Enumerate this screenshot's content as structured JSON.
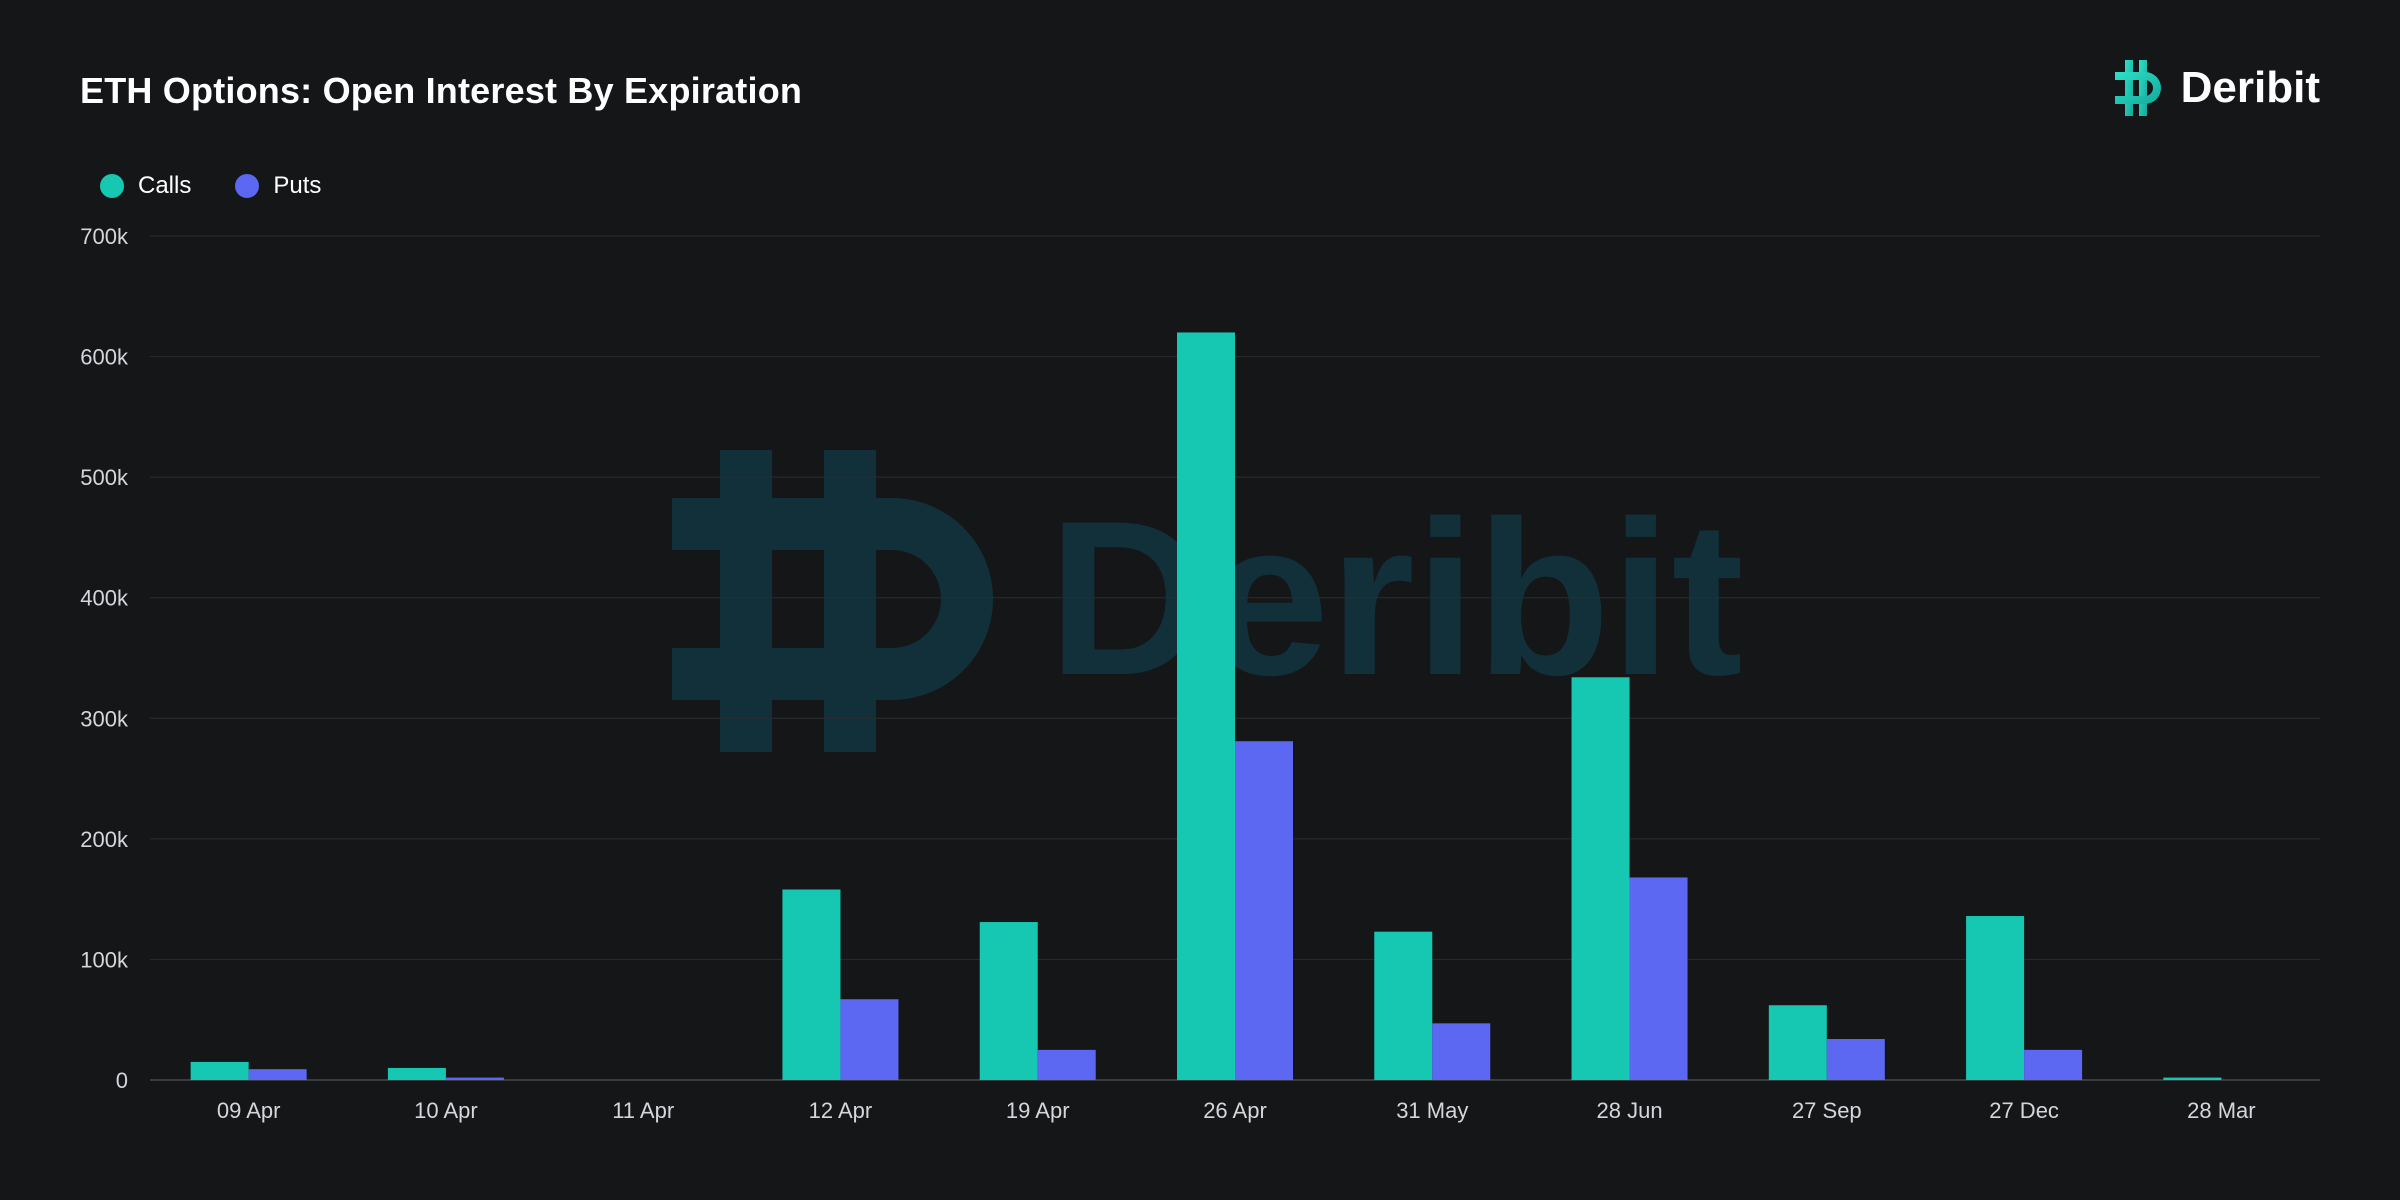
{
  "header": {
    "title": "ETH Options: Open Interest By Expiration",
    "brand_name": "Deribit",
    "watermark_text": "Deribit"
  },
  "colors": {
    "background": "#151618",
    "calls": "#16c8b2",
    "puts": "#5c67f2",
    "grid": "#2a2c30",
    "axis_text": "#d4d6da",
    "watermark": "#12303a"
  },
  "legend": [
    {
      "label": "Calls",
      "color": "#16c8b2"
    },
    {
      "label": "Puts",
      "color": "#5c67f2"
    }
  ],
  "chart_data": {
    "type": "bar",
    "title": "ETH Options: Open Interest By Expiration",
    "xlabel": "",
    "ylabel": "",
    "categories": [
      "09 Apr",
      "10 Apr",
      "11 Apr",
      "12 Apr",
      "19 Apr",
      "26 Apr",
      "31 May",
      "28 Jun",
      "27 Sep",
      "27 Dec",
      "28 Mar"
    ],
    "series": [
      {
        "name": "Calls",
        "color": "#16c8b2",
        "values": [
          15000,
          10000,
          0,
          158000,
          131000,
          620000,
          123000,
          334000,
          62000,
          136000,
          2000
        ]
      },
      {
        "name": "Puts",
        "color": "#5c67f2",
        "values": [
          9000,
          2000,
          0,
          67000,
          25000,
          281000,
          47000,
          168000,
          34000,
          25000,
          0
        ]
      }
    ],
    "ylim": [
      0,
      700000
    ],
    "yticks": [
      0,
      100000,
      200000,
      300000,
      400000,
      500000,
      600000,
      700000
    ],
    "ytick_labels": [
      "0",
      "100k",
      "200k",
      "300k",
      "400k",
      "500k",
      "600k",
      "700k"
    ],
    "grid": true,
    "legend_position": "top-left"
  }
}
